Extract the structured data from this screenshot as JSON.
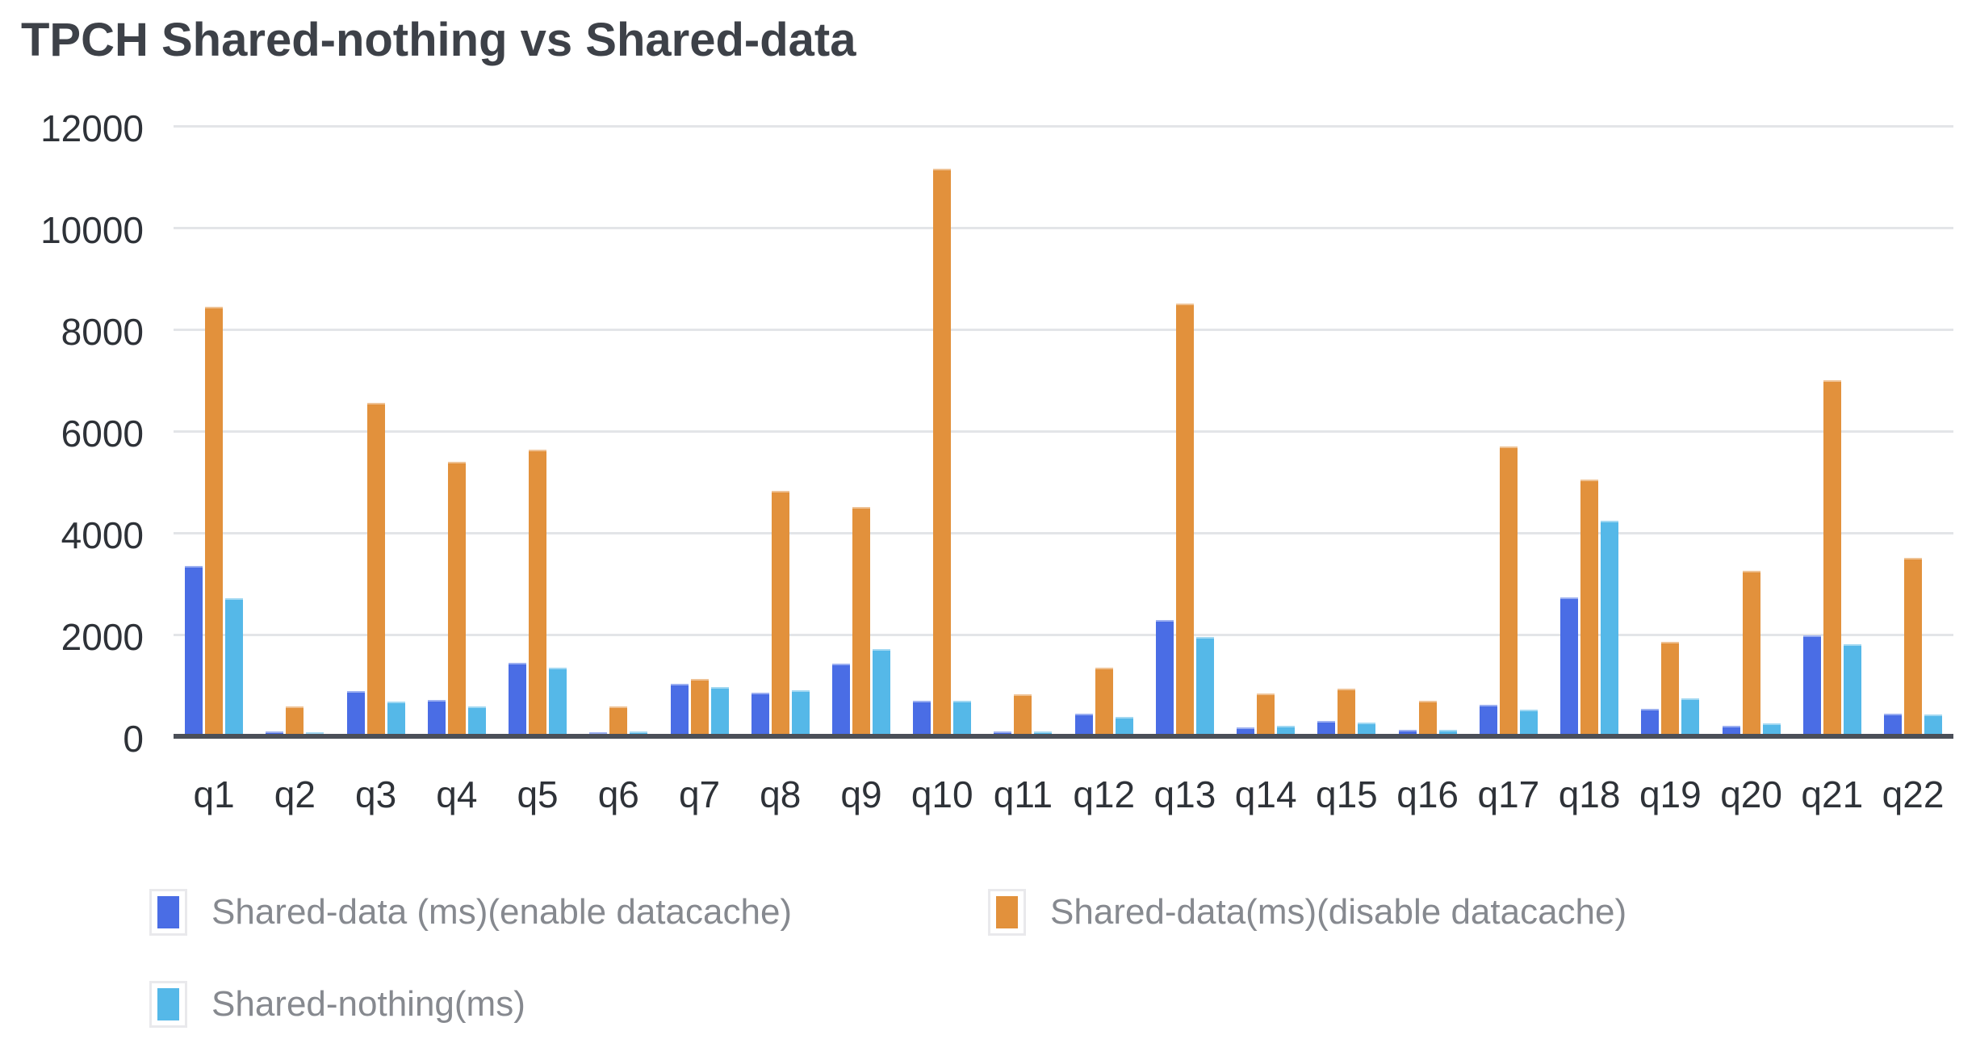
{
  "title": "TPCH Shared-nothing vs Shared-data",
  "colors": {
    "series_blue": "#4A6DE5",
    "series_orange": "#E2913C",
    "series_light_blue": "#55B8E8",
    "gridline": "#E3E5E8",
    "axis_line": "#4B4F58",
    "tick_label": "#2E3238",
    "legend_text": "#86898F",
    "title_text": "#3D4148",
    "background": "#FFFFFF"
  },
  "chart_data": {
    "type": "bar",
    "title": "TPCH Shared-nothing vs Shared-data",
    "categories": [
      "q1",
      "q2",
      "q3",
      "q4",
      "q5",
      "q6",
      "q7",
      "q8",
      "q9",
      "q10",
      "q11",
      "q12",
      "q13",
      "q14",
      "q15",
      "q16",
      "q17",
      "q18",
      "q19",
      "q20",
      "q21",
      "q22"
    ],
    "series": [
      {
        "name": "Shared-data (ms)(enable datacache)",
        "slug": "shared-data-enable-datacache",
        "color": "#4A6DE5",
        "values": [
          3400,
          140,
          930,
          760,
          1490,
          130,
          1080,
          900,
          1470,
          740,
          150,
          490,
          2330,
          230,
          350,
          180,
          670,
          2780,
          580,
          250,
          2030,
          500
        ]
      },
      {
        "name": "Shared-data(ms)(disable datacache)",
        "slug": "shared-data-disable-datacache",
        "color": "#E2913C",
        "values": [
          8500,
          630,
          6600,
          5450,
          5680,
          640,
          1180,
          4880,
          4560,
          11200,
          880,
          1400,
          8550,
          890,
          980,
          740,
          5750,
          5100,
          1900,
          3300,
          7050,
          3550
        ]
      },
      {
        "name": "Shared-nothing(ms)",
        "slug": "shared-nothing",
        "color": "#55B8E8",
        "values": [
          2770,
          130,
          730,
          630,
          1390,
          140,
          1010,
          960,
          1760,
          750,
          140,
          430,
          2000,
          250,
          310,
          170,
          570,
          4280,
          790,
          300,
          1850,
          480
        ]
      }
    ],
    "y_axis": {
      "min": 0,
      "max": 12000,
      "tick_step": 2000,
      "ticks": [
        0,
        2000,
        4000,
        6000,
        8000,
        10000,
        12000
      ]
    },
    "x_axis_label": "",
    "y_axis_label": "",
    "grid": true,
    "legend_position": "bottom-left"
  }
}
